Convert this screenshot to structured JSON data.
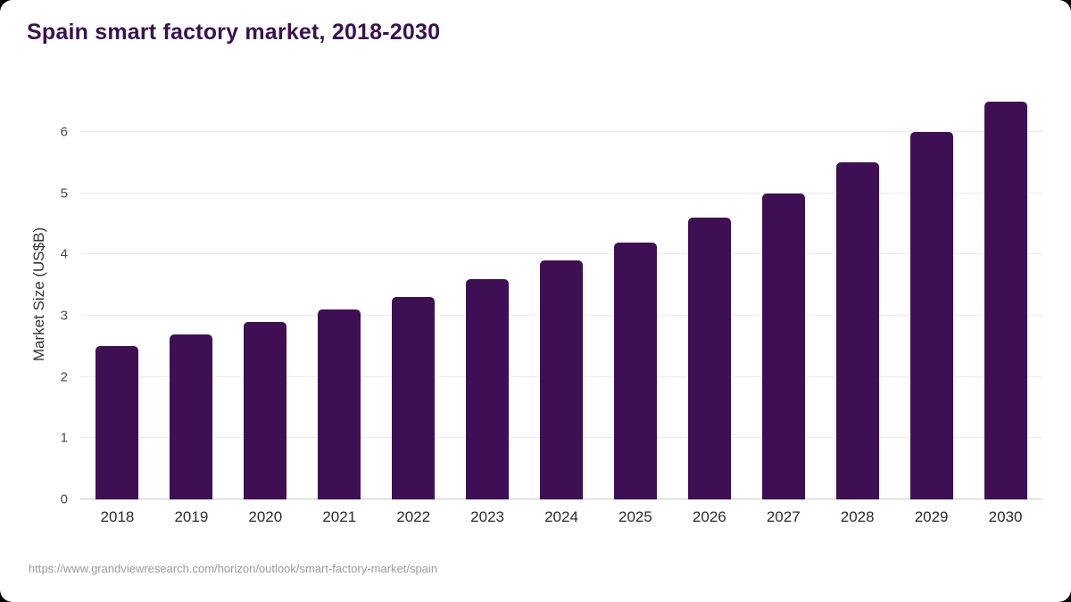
{
  "source": "https://www.grandviewresearch.com/horizon/outlook/smart-factory-market/spain",
  "chart_data": {
    "type": "bar",
    "title": "Spain smart factory market, 2018-2030",
    "categories": [
      "2018",
      "2019",
      "2020",
      "2021",
      "2022",
      "2023",
      "2024",
      "2025",
      "2026",
      "2027",
      "2028",
      "2029",
      "2030"
    ],
    "values": [
      2.5,
      2.7,
      2.9,
      3.1,
      3.3,
      3.6,
      3.9,
      4.2,
      4.6,
      5.0,
      5.5,
      6.0,
      6.5
    ],
    "xlabel": "",
    "ylabel": "Market Size (US$B)",
    "ylim": [
      0,
      6.7
    ],
    "yticks": [
      0,
      1,
      2,
      3,
      4,
      5,
      6
    ],
    "grid": true,
    "legend": "none",
    "bar_color": "#3e1053",
    "title_color": "#3a1053",
    "background_color": "#ffffff"
  }
}
